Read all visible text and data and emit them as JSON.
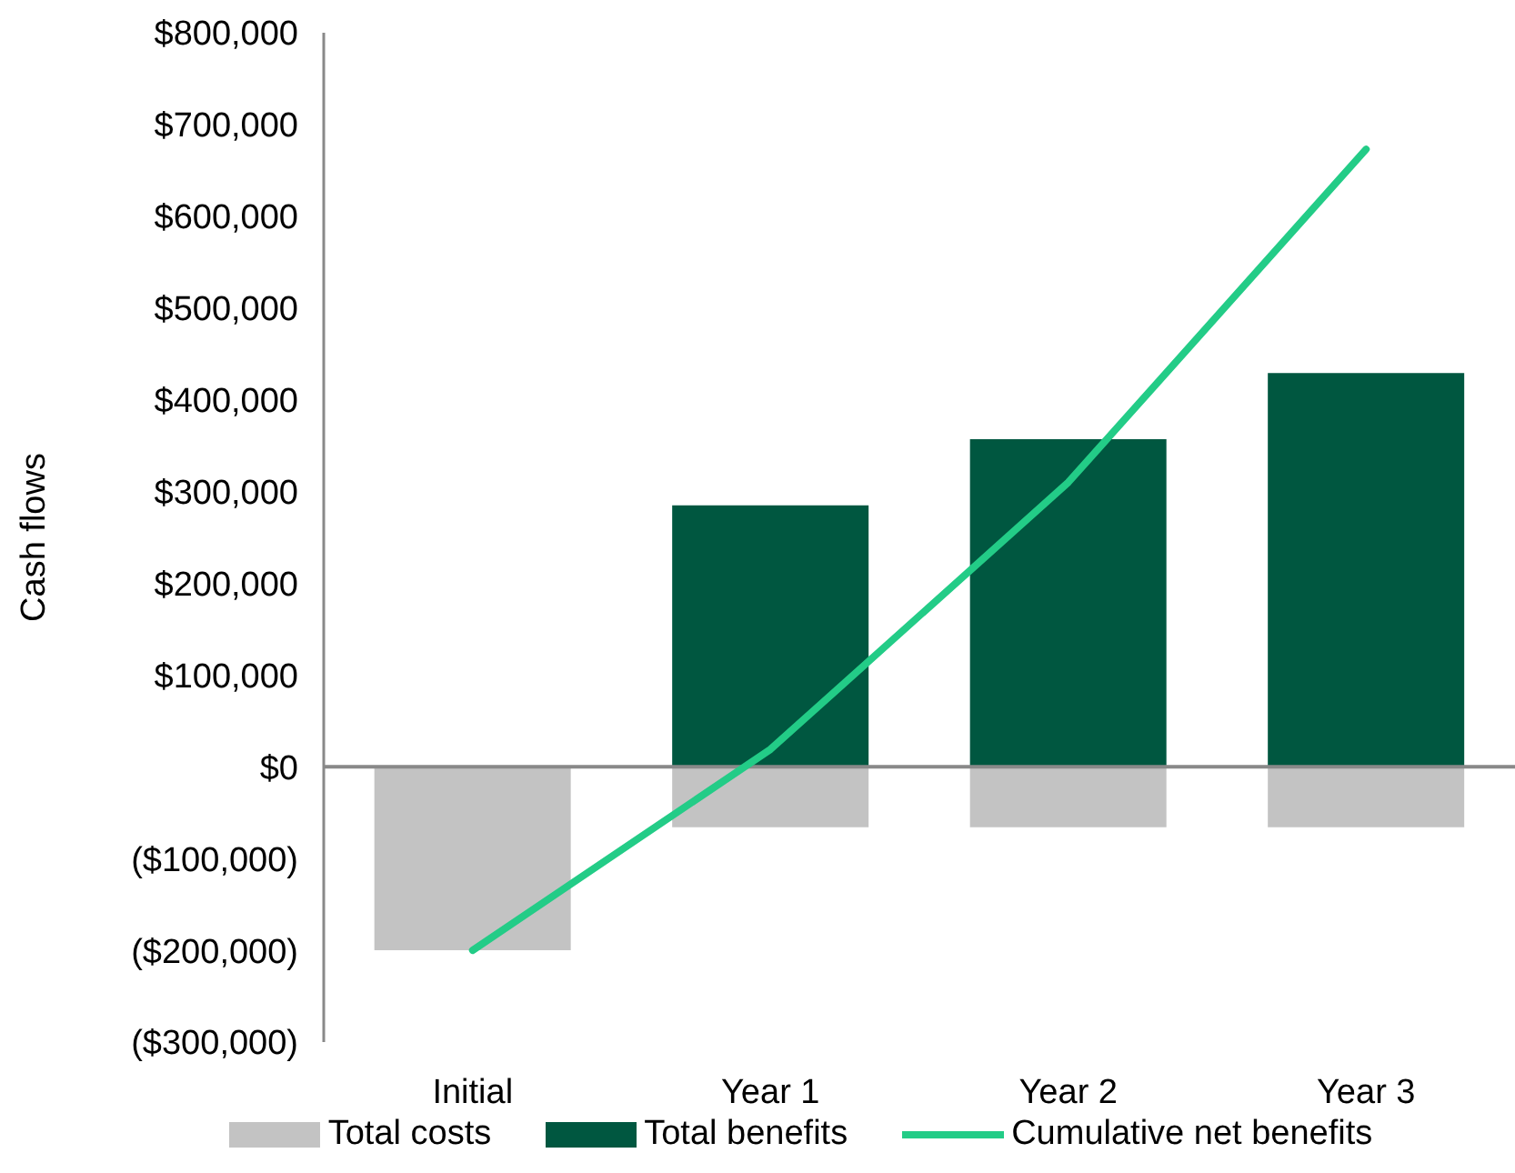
{
  "chart_data": {
    "type": "bar",
    "ylabel": "Cash flows",
    "categories": [
      "Initial",
      "Year 1",
      "Year 2",
      "Year 3"
    ],
    "stacked": true,
    "series": [
      {
        "name": "Total costs",
        "color": "#c3c3c3",
        "values": [
          -200000,
          -66000,
          -66000,
          -66000
        ]
      },
      {
        "name": "Total benefits",
        "color": "#005740",
        "values": [
          null,
          285000,
          357000,
          429000
        ]
      },
      {
        "name": "Cumulative net benefits",
        "type": "line",
        "color": "#23cc87",
        "values": [
          -200000,
          19000,
          310000,
          673000
        ]
      }
    ],
    "ylim": [
      -300000,
      800000
    ],
    "yticks": [
      {
        "value": -300000,
        "label": "($300,000)"
      },
      {
        "value": -200000,
        "label": "($200,000)"
      },
      {
        "value": -100000,
        "label": "($100,000)"
      },
      {
        "value": 0,
        "label": "$0"
      },
      {
        "value": 100000,
        "label": "$100,000"
      },
      {
        "value": 200000,
        "label": "$200,000"
      },
      {
        "value": 300000,
        "label": "$300,000"
      },
      {
        "value": 400000,
        "label": "$400,000"
      },
      {
        "value": 500000,
        "label": "$500,000"
      },
      {
        "value": 600000,
        "label": "$600,000"
      },
      {
        "value": 700000,
        "label": "$700,000"
      },
      {
        "value": 800000,
        "label": "$800,000"
      }
    ],
    "ref_lines": [
      {
        "axis": "y",
        "value": 0,
        "color": "#898989"
      }
    ],
    "grid": false,
    "legend": "bottom",
    "marker": "none"
  }
}
